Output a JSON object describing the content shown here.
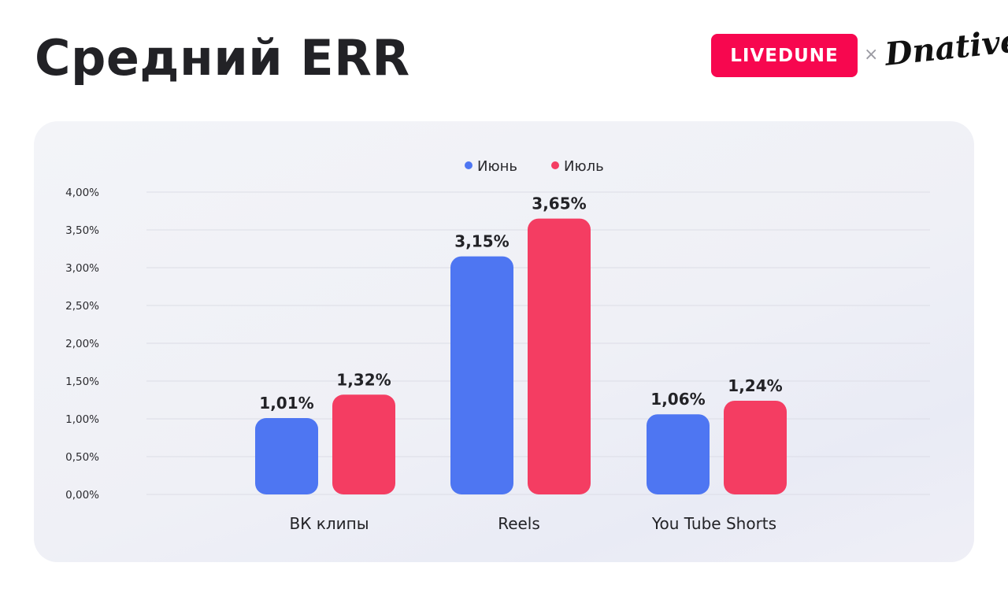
{
  "header": {
    "title": "Средний ERR",
    "brand_button": "LIVEDUNE",
    "separator": "×",
    "partner_logo": "Dnative"
  },
  "colors": {
    "series1": "#4e76f2",
    "series2": "#f43d62",
    "brand": "#f7074f"
  },
  "chart_data": {
    "type": "bar",
    "categories": [
      "ВК клипы",
      "Reels",
      "You Tube Shorts"
    ],
    "series": [
      {
        "name": "Июнь",
        "values": [
          1.01,
          3.15,
          1.06
        ],
        "labels": [
          "1,01%",
          "3,15%",
          "1,06%"
        ]
      },
      {
        "name": "Июль",
        "values": [
          1.32,
          3.65,
          1.24
        ],
        "labels": [
          "1,32%",
          "3,65%",
          "1,24%"
        ]
      }
    ],
    "y_ticks": [
      "0,00%",
      "0,50%",
      "1,00%",
      "1,50%",
      "2,00%",
      "2,50%",
      "3,00%",
      "3,50%",
      "4,00%"
    ],
    "ylim": [
      0,
      4
    ],
    "grid": true,
    "legend": "top-center"
  }
}
